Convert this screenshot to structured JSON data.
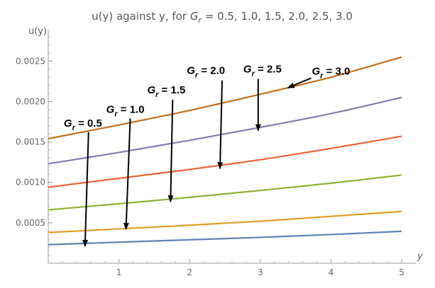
{
  "chart_data": {
    "type": "line",
    "title_parts": {
      "prefix": "u(y) against  y, for ",
      "var": "G",
      "sub": "r",
      "suffix": " = 0.5, 1.0, 1.5, 2.0, 2.5, 3.0"
    },
    "xlabel": "y",
    "ylabel": "u(y)",
    "xlim": [
      0,
      5
    ],
    "ylim": [
      0,
      0.0028
    ],
    "x_ticks": [
      1,
      2,
      3,
      4,
      5
    ],
    "x_tick_labels": [
      "1",
      "2",
      "3",
      "4",
      "5"
    ],
    "y_ticks": [
      0.0005,
      0.001,
      0.0015,
      0.002,
      0.0025
    ],
    "y_tick_labels": [
      "0.0005",
      "0.0010",
      "0.0015",
      "0.0020",
      "0.0025"
    ],
    "grid": false,
    "x": [
      0,
      1,
      2,
      3,
      4,
      5
    ],
    "series": [
      {
        "color": "#5e81b5",
        "values": [
          0.00023,
          0.00026,
          0.00029,
          0.00032,
          0.000355,
          0.000395
        ]
      },
      {
        "color": "#e19c24",
        "values": [
          0.00038,
          0.000425,
          0.00047,
          0.00052,
          0.00058,
          0.00064
        ]
      },
      {
        "color": "#8fb032",
        "values": [
          0.00066,
          0.000735,
          0.000815,
          0.0009,
          0.00099,
          0.00109
        ]
      },
      {
        "color": "#eb6235",
        "values": [
          0.00094,
          0.00105,
          0.00116,
          0.00128,
          0.00142,
          0.00157
        ]
      },
      {
        "color": "#8778b3",
        "values": [
          0.00123,
          0.00137,
          0.00152,
          0.00168,
          0.00185,
          0.00205
        ]
      },
      {
        "color": "#c56e1a",
        "values": [
          0.00154,
          0.00171,
          0.00189,
          0.00209,
          0.0023,
          0.00255
        ]
      }
    ],
    "annotations": [
      {
        "var": "G",
        "sub": "r",
        "text": " = 0.5",
        "label_x": 0.22,
        "label_y": 0.00169,
        "arrow_from": [
          0.57,
          0.00162
        ],
        "arrow_to": [
          0.52,
          0.00021
        ]
      },
      {
        "var": "G",
        "sub": "r",
        "text": " = 1.0",
        "label_x": 0.82,
        "label_y": 0.00186,
        "arrow_from": [
          1.16,
          0.00179
        ],
        "arrow_to": [
          1.1,
          0.00042
        ]
      },
      {
        "var": "G",
        "sub": "r",
        "text": " = 1.5",
        "label_x": 1.4,
        "label_y": 0.0021,
        "arrow_from": [
          1.76,
          0.00202
        ],
        "arrow_to": [
          1.73,
          0.00076
        ]
      },
      {
        "var": "G",
        "sub": "r",
        "text": " = 2.0",
        "label_x": 1.96,
        "label_y": 0.00234,
        "arrow_from": [
          2.46,
          0.00226
        ],
        "arrow_to": [
          2.43,
          0.00117
        ]
      },
      {
        "var": "G",
        "sub": "r",
        "text": " = 2.5",
        "label_x": 2.76,
        "label_y": 0.00236,
        "arrow_from": [
          2.97,
          0.00228
        ],
        "arrow_to": [
          2.97,
          0.00164
        ]
      },
      {
        "var": "G",
        "sub": "r",
        "text": " = 3.0",
        "label_x": 3.73,
        "label_y": 0.00233,
        "arrow_from": [
          3.72,
          0.00229
        ],
        "arrow_to": [
          3.39,
          0.00217
        ]
      }
    ]
  }
}
